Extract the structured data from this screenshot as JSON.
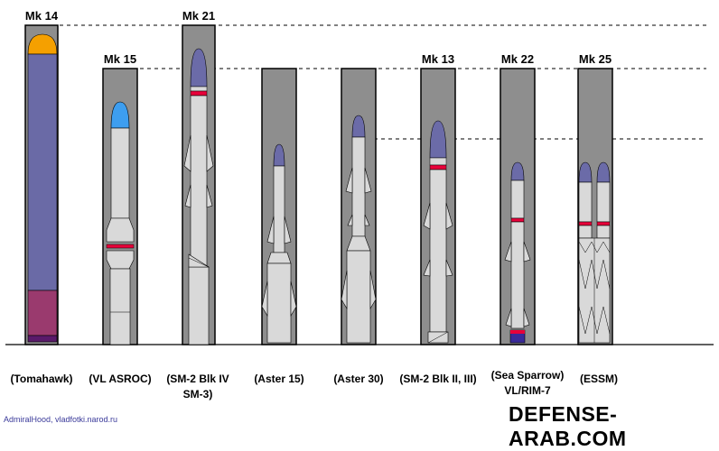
{
  "launchers": [
    {
      "cell": "Mk 14",
      "missile": [
        "(Tomahawk)"
      ]
    },
    {
      "cell": "Mk 15",
      "missile": [
        "(VL ASROC)"
      ]
    },
    {
      "cell": "Mk 21",
      "missile": [
        "(SM-2 Blk IV",
        "SM-3)"
      ]
    },
    {
      "cell": "",
      "missile": [
        "(Aster 15)"
      ]
    },
    {
      "cell": "",
      "missile": [
        "(Aster 30)"
      ]
    },
    {
      "cell": "Mk 13",
      "missile": [
        "(SM-2 Blk II, III)"
      ]
    },
    {
      "cell": "Mk 22",
      "missile": [
        "(Sea Sparrow)",
        "VL/RIM-7"
      ]
    },
    {
      "cell": "Mk 25",
      "missile": [
        "(ESSM)"
      ]
    }
  ],
  "colors": {
    "cell_fill": "#8e8e8e",
    "missile_body": "#d9d9d9",
    "nose_blue": "#6b6ba8",
    "nose_orange": "#f5a000",
    "nose_light_blue": "#3d9ef0",
    "red_band": "#e8003a",
    "tomahawk_body": "#6a6aa6",
    "tomahawk_booster": "#9a3a6e"
  },
  "credit": "AdmiralHood, vladfotki.narod.ru",
  "watermark": "DEFENSE-ARAB.COM"
}
